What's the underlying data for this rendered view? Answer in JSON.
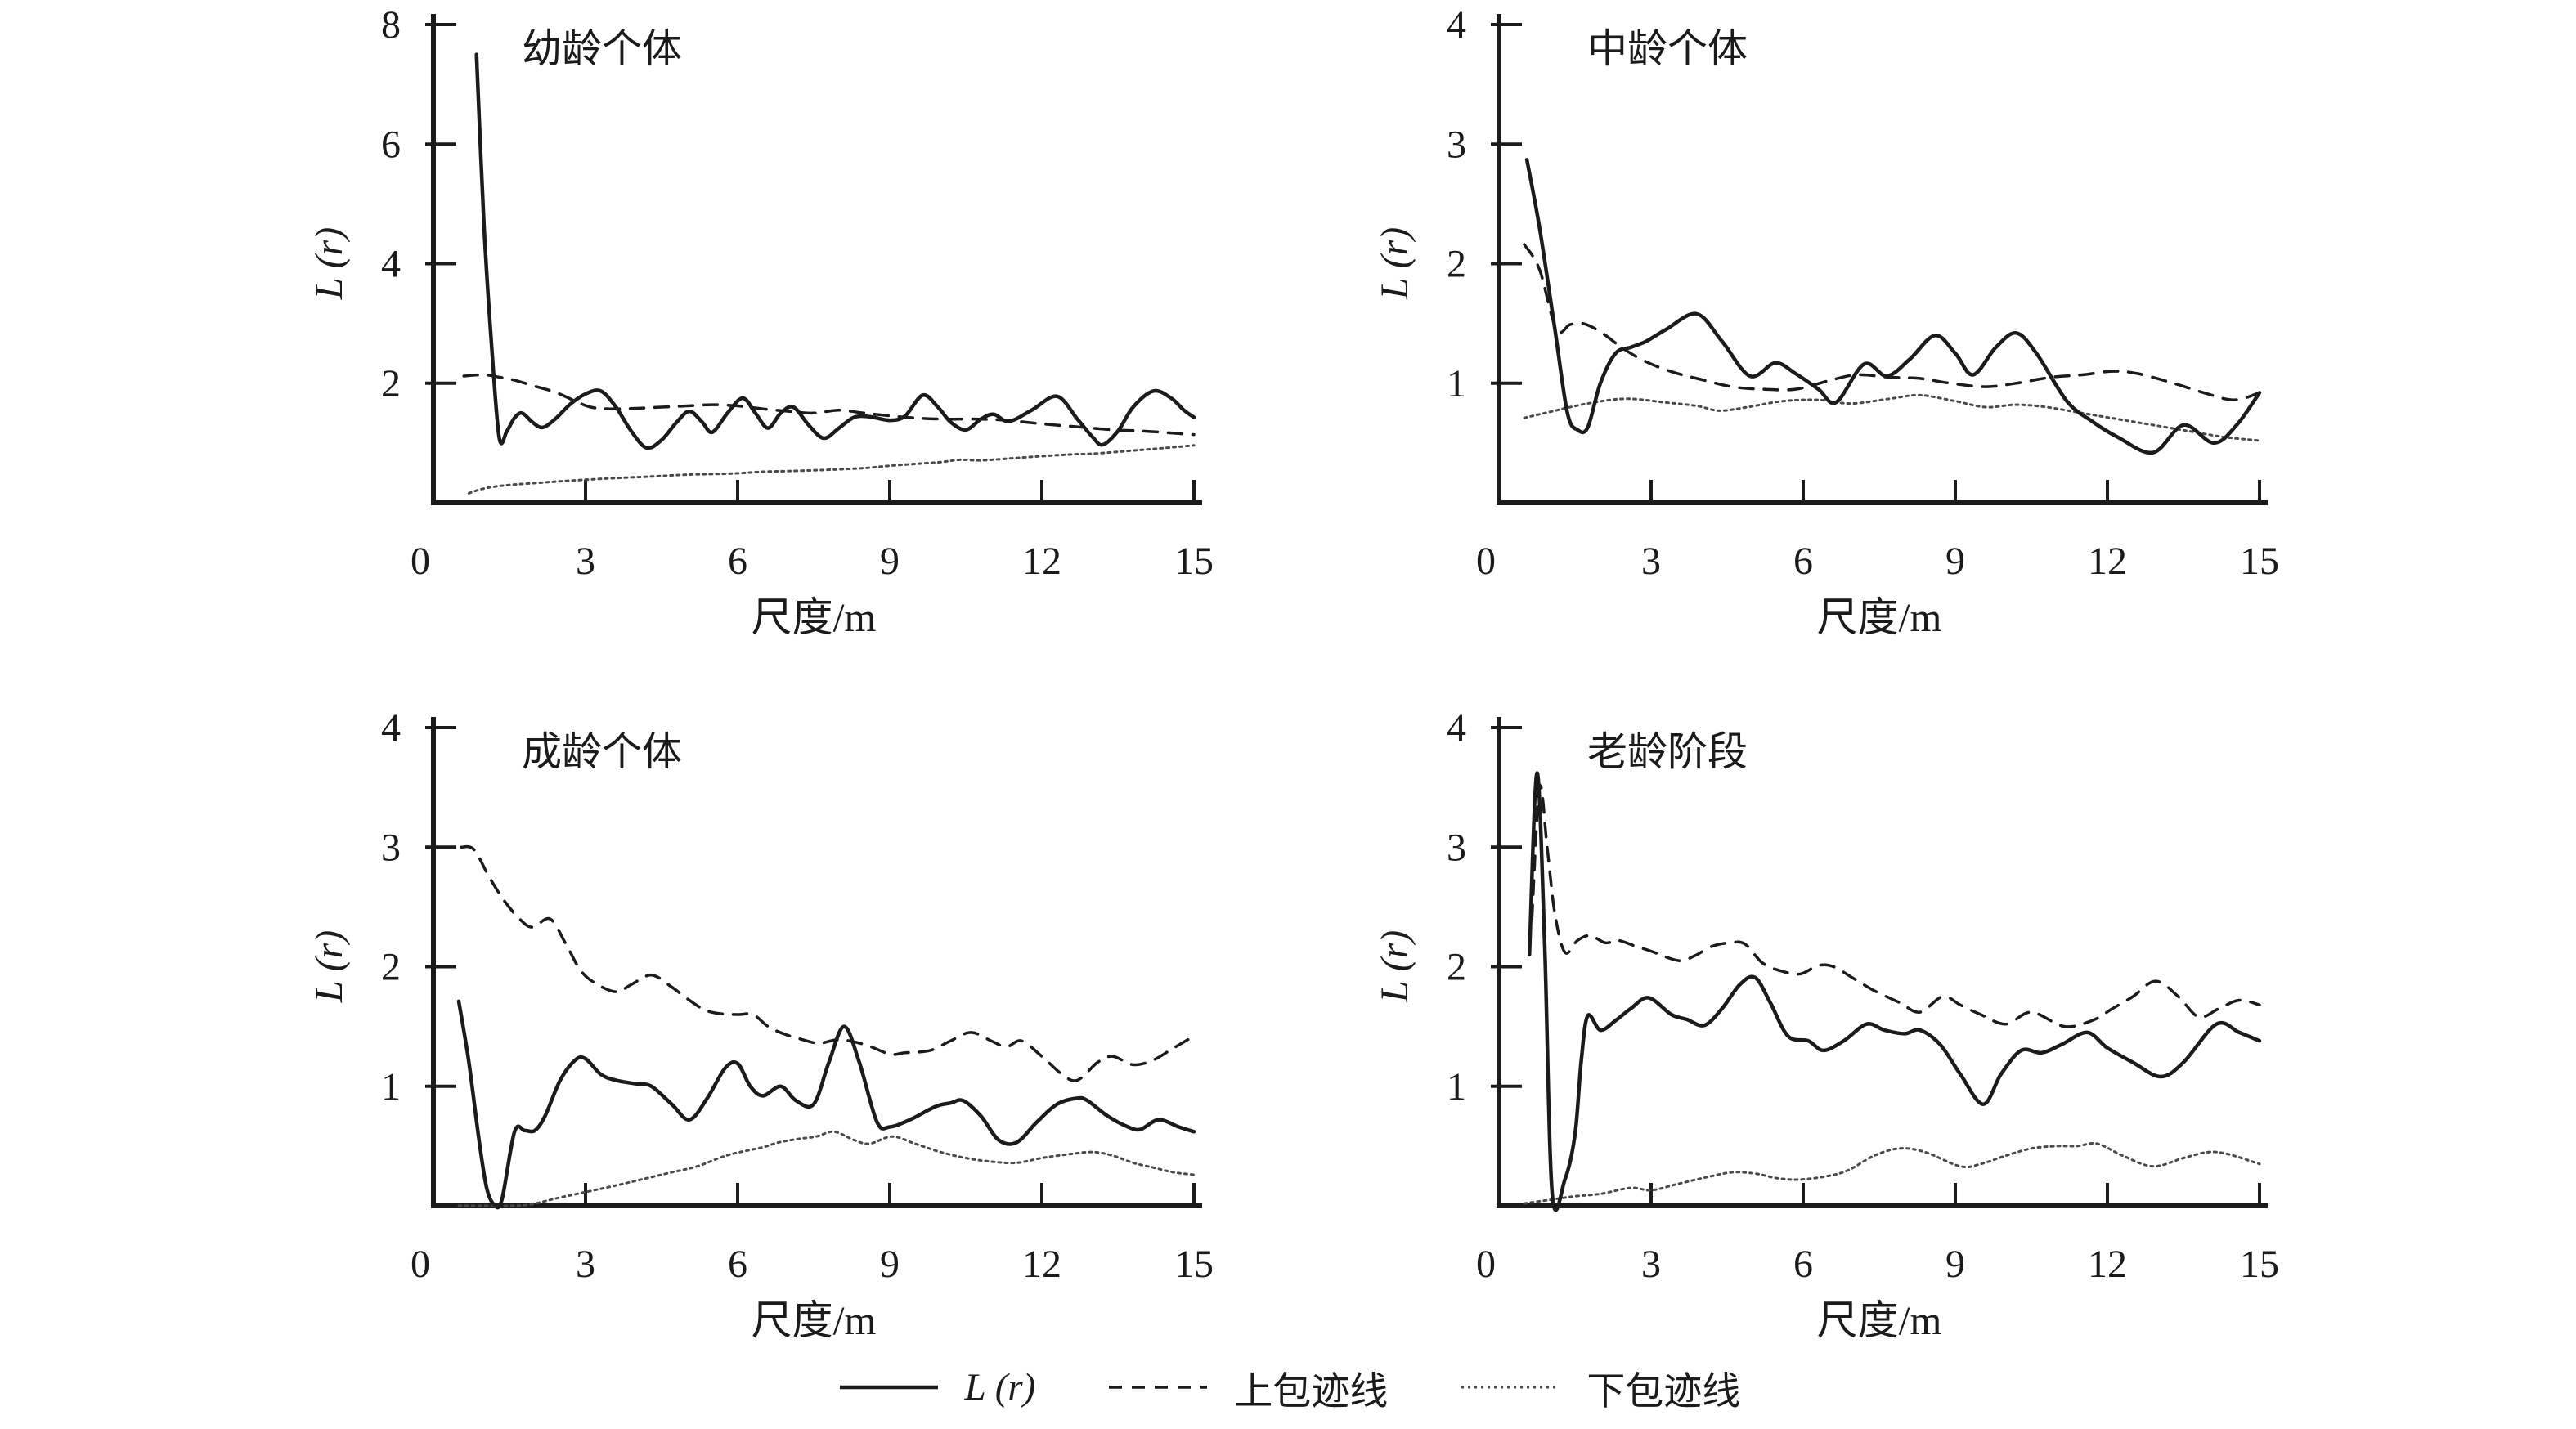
{
  "figure": {
    "legend": {
      "items": [
        {
          "name": "L(r)",
          "label": "L (r)",
          "style": "solid"
        },
        {
          "name": "upper-envelope",
          "label": "上包迹线",
          "style": "dashed"
        },
        {
          "name": "lower-envelope",
          "label": "下包迹线",
          "style": "dotted"
        }
      ]
    }
  },
  "colors": {
    "line": "#1b1b1b",
    "dotted_line": "#4a4a4a",
    "background": "#ffffff"
  },
  "chart_data": [
    {
      "type": "line",
      "title": "幼龄个体",
      "xlabel": "尺度/m",
      "ylabel": "L (r)",
      "xlim": [
        0,
        15
      ],
      "ylim": [
        0,
        8
      ],
      "xticks": [
        0,
        3,
        6,
        9,
        12,
        15
      ],
      "yticks": [
        2,
        4,
        6,
        8
      ],
      "grid": false,
      "legend_position": "bottom-shared",
      "series": [
        {
          "name": "L(r)",
          "style": "solid",
          "x": [
            0.85,
            1.0,
            1.15,
            1.3,
            1.45,
            1.6,
            1.75,
            1.95,
            2.15,
            2.4,
            2.7,
            3.0,
            3.3,
            3.6,
            3.9,
            4.2,
            4.5,
            4.8,
            5.05,
            5.3,
            5.5,
            5.8,
            6.1,
            6.35,
            6.6,
            6.85,
            7.1,
            7.4,
            7.7,
            8.0,
            8.3,
            8.6,
            9.0,
            9.3,
            9.65,
            9.95,
            10.2,
            10.5,
            10.8,
            11.05,
            11.35,
            11.8,
            12.3,
            12.7,
            13.0,
            13.2,
            13.5,
            13.8,
            14.2,
            14.55,
            14.8,
            15.0
          ],
          "y": [
            7.5,
            4.6,
            2.6,
            1.08,
            1.2,
            1.42,
            1.5,
            1.35,
            1.26,
            1.4,
            1.65,
            1.82,
            1.87,
            1.6,
            1.2,
            0.92,
            1.05,
            1.35,
            1.53,
            1.35,
            1.18,
            1.5,
            1.75,
            1.5,
            1.25,
            1.5,
            1.6,
            1.3,
            1.08,
            1.25,
            1.43,
            1.44,
            1.38,
            1.45,
            1.8,
            1.6,
            1.35,
            1.22,
            1.4,
            1.48,
            1.36,
            1.55,
            1.78,
            1.4,
            1.1,
            0.97,
            1.2,
            1.6,
            1.87,
            1.75,
            1.55,
            1.43
          ]
        },
        {
          "name": "上包迹线",
          "style": "dashed",
          "x": [
            0.6,
            1.0,
            1.3,
            1.6,
            2.0,
            2.4,
            2.8,
            3.1,
            3.5,
            4.0,
            4.5,
            5.0,
            5.5,
            6.0,
            6.5,
            7.0,
            7.5,
            8.0,
            8.5,
            9.3,
            10.0,
            10.7,
            11.3,
            12.0,
            12.7,
            13.4,
            14.0,
            14.5,
            15.0
          ],
          "y": [
            2.12,
            2.14,
            2.1,
            2.05,
            1.95,
            1.85,
            1.7,
            1.6,
            1.57,
            1.58,
            1.6,
            1.62,
            1.64,
            1.62,
            1.57,
            1.53,
            1.5,
            1.55,
            1.5,
            1.43,
            1.4,
            1.4,
            1.38,
            1.32,
            1.27,
            1.22,
            1.2,
            1.17,
            1.14
          ]
        },
        {
          "name": "下包迹线",
          "style": "dotted",
          "x": [
            0.7,
            1.0,
            1.4,
            2.0,
            2.7,
            3.5,
            4.3,
            5.0,
            5.9,
            6.5,
            7.0,
            7.7,
            8.5,
            9.0,
            9.5,
            10.0,
            10.4,
            10.8,
            11.5,
            12.0,
            12.6,
            13.0,
            13.6,
            14.2,
            14.6,
            15.0
          ],
          "y": [
            0.16,
            0.24,
            0.29,
            0.33,
            0.37,
            0.41,
            0.44,
            0.47,
            0.49,
            0.52,
            0.53,
            0.55,
            0.58,
            0.62,
            0.65,
            0.68,
            0.72,
            0.71,
            0.75,
            0.78,
            0.81,
            0.82,
            0.86,
            0.9,
            0.93,
            0.96
          ]
        }
      ]
    },
    {
      "type": "line",
      "title": "中龄个体",
      "xlabel": "尺度/m",
      "ylabel": "L (r)",
      "xlim": [
        0,
        15
      ],
      "ylim": [
        0,
        4
      ],
      "xticks": [
        0,
        3,
        6,
        9,
        12,
        15
      ],
      "yticks": [
        1,
        2,
        3,
        4
      ],
      "grid": false,
      "legend_position": "bottom-shared",
      "series": [
        {
          "name": "L(r)",
          "style": "solid",
          "x": [
            0.55,
            0.8,
            1.1,
            1.35,
            1.55,
            1.75,
            2.0,
            2.3,
            2.6,
            2.9,
            3.3,
            3.9,
            4.4,
            4.95,
            5.45,
            5.85,
            6.3,
            6.65,
            7.2,
            7.65,
            8.1,
            8.6,
            9.0,
            9.35,
            9.8,
            10.2,
            10.6,
            11.2,
            11.7,
            12.2,
            12.9,
            13.5,
            14.1,
            14.55,
            15.0
          ],
          "y": [
            2.87,
            2.3,
            1.46,
            0.75,
            0.61,
            0.63,
            1.0,
            1.25,
            1.3,
            1.35,
            1.45,
            1.58,
            1.35,
            1.06,
            1.17,
            1.08,
            0.95,
            0.84,
            1.16,
            1.06,
            1.2,
            1.4,
            1.25,
            1.07,
            1.3,
            1.42,
            1.25,
            0.85,
            0.68,
            0.55,
            0.42,
            0.65,
            0.5,
            0.65,
            0.92
          ]
        },
        {
          "name": "上包迹线",
          "style": "dashed",
          "x": [
            0.5,
            0.8,
            1.13,
            1.4,
            1.65,
            2.0,
            2.45,
            2.9,
            3.45,
            4.0,
            4.6,
            5.2,
            5.85,
            6.5,
            7.05,
            7.7,
            8.3,
            8.9,
            9.6,
            10.2,
            10.9,
            11.5,
            12.1,
            12.6,
            13.3,
            13.9,
            14.5,
            15.0
          ],
          "y": [
            2.16,
            1.95,
            1.45,
            1.49,
            1.5,
            1.43,
            1.29,
            1.18,
            1.09,
            1.03,
            0.97,
            0.95,
            0.95,
            1.02,
            1.07,
            1.05,
            1.04,
            1.0,
            0.97,
            1.0,
            1.05,
            1.07,
            1.1,
            1.08,
            1.0,
            0.92,
            0.86,
            0.92
          ]
        },
        {
          "name": "下包迹线",
          "style": "dotted",
          "x": [
            0.5,
            1.0,
            1.75,
            2.5,
            3.25,
            3.9,
            4.35,
            4.9,
            5.6,
            6.3,
            6.95,
            7.7,
            8.3,
            9.0,
            9.6,
            10.2,
            10.8,
            11.5,
            12.2,
            12.9,
            13.6,
            14.3,
            15.0
          ],
          "y": [
            0.71,
            0.76,
            0.83,
            0.87,
            0.84,
            0.81,
            0.77,
            0.8,
            0.85,
            0.86,
            0.83,
            0.87,
            0.9,
            0.85,
            0.8,
            0.82,
            0.8,
            0.75,
            0.7,
            0.65,
            0.6,
            0.55,
            0.52
          ]
        }
      ]
    },
    {
      "type": "line",
      "title": "成龄个体",
      "xlabel": "尺度/m",
      "ylabel": "L (r)",
      "xlim": [
        0,
        15
      ],
      "ylim": [
        0,
        4
      ],
      "xticks": [
        0,
        3,
        6,
        9,
        12,
        15
      ],
      "yticks": [
        1,
        2,
        3,
        4
      ],
      "grid": false,
      "legend_position": "bottom-shared",
      "series": [
        {
          "name": "L(r)",
          "style": "solid",
          "x": [
            0.5,
            0.7,
            0.9,
            1.05,
            1.2,
            1.35,
            1.6,
            1.8,
            2.0,
            2.2,
            2.5,
            2.8,
            3.0,
            3.3,
            3.6,
            4.0,
            4.3,
            4.7,
            5.05,
            5.4,
            5.75,
            6.0,
            6.25,
            6.5,
            6.85,
            7.15,
            7.5,
            7.8,
            8.1,
            8.4,
            8.75,
            9.0,
            9.4,
            9.9,
            10.2,
            10.45,
            10.8,
            11.15,
            11.5,
            11.9,
            12.3,
            12.7,
            12.9,
            13.3,
            13.7,
            13.95,
            14.3,
            14.7,
            15.0
          ],
          "y": [
            1.71,
            1.2,
            0.55,
            0.15,
            0.01,
            0.05,
            0.62,
            0.63,
            0.63,
            0.75,
            1.05,
            1.22,
            1.23,
            1.1,
            1.05,
            1.02,
            1.0,
            0.85,
            0.72,
            0.9,
            1.15,
            1.19,
            1.0,
            0.92,
            1.0,
            0.88,
            0.85,
            1.2,
            1.5,
            1.2,
            0.7,
            0.66,
            0.72,
            0.83,
            0.86,
            0.88,
            0.75,
            0.55,
            0.53,
            0.7,
            0.85,
            0.9,
            0.88,
            0.75,
            0.66,
            0.64,
            0.72,
            0.66,
            0.62
          ]
        },
        {
          "name": "上包迹线",
          "style": "dashed",
          "x": [
            0.55,
            0.8,
            1.1,
            1.4,
            1.7,
            1.95,
            2.3,
            2.6,
            2.9,
            3.2,
            3.6,
            3.9,
            4.3,
            4.7,
            4.95,
            5.3,
            5.6,
            6.0,
            6.3,
            6.6,
            6.9,
            7.2,
            7.6,
            8.0,
            8.5,
            9.0,
            9.3,
            9.8,
            10.2,
            10.6,
            11.0,
            11.3,
            11.6,
            12.0,
            12.4,
            12.7,
            13.1,
            13.4,
            13.8,
            14.2,
            14.6,
            15.0
          ],
          "y": [
            3.0,
            2.98,
            2.75,
            2.55,
            2.4,
            2.33,
            2.4,
            2.2,
            1.97,
            1.86,
            1.79,
            1.85,
            1.93,
            1.83,
            1.75,
            1.65,
            1.61,
            1.6,
            1.6,
            1.5,
            1.44,
            1.4,
            1.36,
            1.39,
            1.35,
            1.27,
            1.28,
            1.3,
            1.38,
            1.45,
            1.38,
            1.33,
            1.38,
            1.25,
            1.1,
            1.05,
            1.2,
            1.25,
            1.18,
            1.22,
            1.32,
            1.42
          ]
        },
        {
          "name": "下包迹线",
          "style": "dotted",
          "x": [
            0.5,
            1.0,
            1.5,
            1.9,
            2.4,
            3.05,
            3.6,
            4.1,
            4.7,
            5.2,
            5.7,
            6.05,
            6.5,
            6.8,
            7.2,
            7.55,
            7.9,
            8.3,
            8.6,
            9.05,
            9.5,
            10.0,
            10.5,
            11.0,
            11.5,
            12.0,
            12.5,
            13.0,
            13.4,
            13.8,
            14.2,
            14.6,
            15.0
          ],
          "y": [
            0.0,
            0.0,
            0.0,
            0.01,
            0.06,
            0.12,
            0.17,
            0.22,
            0.28,
            0.33,
            0.41,
            0.45,
            0.49,
            0.53,
            0.56,
            0.58,
            0.62,
            0.55,
            0.52,
            0.58,
            0.52,
            0.45,
            0.4,
            0.37,
            0.36,
            0.4,
            0.43,
            0.45,
            0.42,
            0.36,
            0.32,
            0.28,
            0.26
          ]
        }
      ]
    },
    {
      "type": "line",
      "title": "老龄阶段",
      "xlabel": "尺度/m",
      "ylabel": "L (r)",
      "xlim": [
        0,
        15
      ],
      "ylim": [
        0,
        4
      ],
      "xticks": [
        0,
        3,
        6,
        9,
        12,
        15
      ],
      "yticks": [
        1,
        2,
        3,
        4
      ],
      "grid": false,
      "legend_position": "bottom-shared",
      "series": [
        {
          "name": "L(r)",
          "style": "solid",
          "x": [
            0.6,
            0.75,
            0.9,
            1.05,
            1.3,
            1.5,
            1.62,
            1.75,
            2.0,
            2.3,
            2.6,
            2.95,
            3.4,
            3.7,
            4.05,
            4.4,
            4.75,
            5.05,
            5.35,
            5.7,
            6.1,
            6.4,
            6.8,
            7.25,
            7.6,
            8.0,
            8.3,
            8.7,
            9.1,
            9.55,
            9.9,
            10.3,
            10.7,
            11.1,
            11.6,
            12.0,
            12.5,
            13.05,
            13.5,
            14.15,
            14.6,
            15.0
          ],
          "y": [
            2.1,
            3.62,
            2.2,
            0.1,
            0.22,
            0.6,
            1.2,
            1.59,
            1.47,
            1.55,
            1.65,
            1.74,
            1.6,
            1.56,
            1.51,
            1.65,
            1.85,
            1.91,
            1.7,
            1.42,
            1.38,
            1.3,
            1.38,
            1.52,
            1.47,
            1.44,
            1.47,
            1.35,
            1.1,
            0.85,
            1.1,
            1.3,
            1.28,
            1.35,
            1.45,
            1.32,
            1.2,
            1.08,
            1.2,
            1.52,
            1.45,
            1.38
          ]
        },
        {
          "name": "上包迹线",
          "style": "dashed",
          "x": [
            0.65,
            0.8,
            0.95,
            1.1,
            1.3,
            1.55,
            1.8,
            2.1,
            2.35,
            2.7,
            3.0,
            3.3,
            3.6,
            3.9,
            4.2,
            4.55,
            4.85,
            5.2,
            5.6,
            5.95,
            6.3,
            6.6,
            7.0,
            7.4,
            7.9,
            8.3,
            8.75,
            9.1,
            9.5,
            10.0,
            10.5,
            11.15,
            11.7,
            12.1,
            12.5,
            12.95,
            13.4,
            13.8,
            14.2,
            14.6,
            15.0
          ],
          "y": [
            2.4,
            3.5,
            3.0,
            2.45,
            2.12,
            2.22,
            2.26,
            2.2,
            2.22,
            2.17,
            2.13,
            2.08,
            2.05,
            2.1,
            2.17,
            2.2,
            2.19,
            2.03,
            1.96,
            1.94,
            2.01,
            2.0,
            1.9,
            1.8,
            1.7,
            1.62,
            1.75,
            1.68,
            1.6,
            1.52,
            1.62,
            1.5,
            1.55,
            1.65,
            1.75,
            1.88,
            1.75,
            1.58,
            1.65,
            1.72,
            1.68
          ]
        },
        {
          "name": "下包迹线",
          "style": "dotted",
          "x": [
            0.5,
            1.0,
            1.5,
            2.0,
            2.6,
            3.0,
            3.5,
            4.1,
            4.6,
            5.05,
            5.5,
            5.95,
            6.5,
            6.9,
            7.4,
            7.9,
            8.4,
            9.1,
            9.5,
            10.0,
            10.5,
            11.0,
            11.4,
            11.8,
            12.3,
            12.9,
            13.5,
            14.0,
            14.4,
            15.0
          ],
          "y": [
            0.02,
            0.05,
            0.08,
            0.1,
            0.15,
            0.13,
            0.18,
            0.24,
            0.28,
            0.27,
            0.23,
            0.22,
            0.25,
            0.3,
            0.42,
            0.48,
            0.45,
            0.33,
            0.35,
            0.42,
            0.48,
            0.5,
            0.5,
            0.52,
            0.42,
            0.33,
            0.4,
            0.45,
            0.43,
            0.35
          ]
        }
      ]
    }
  ]
}
